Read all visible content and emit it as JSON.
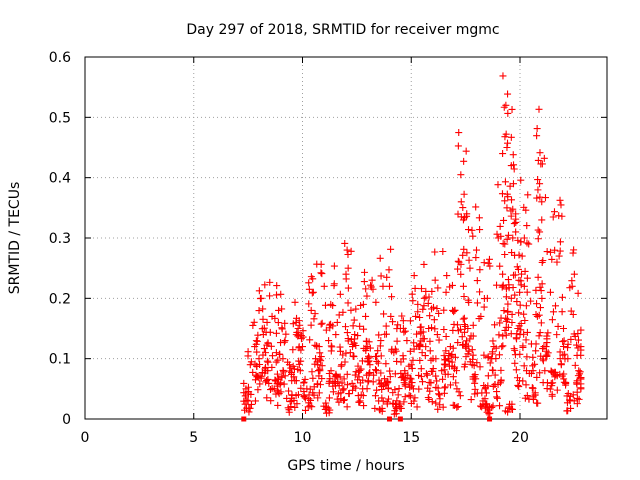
{
  "chart_data": {
    "type": "scatter",
    "title": "Day 297 of 2018, SRMTID for receiver mgmc",
    "xlabel": "GPS time / hours",
    "ylabel": "SRMTID / TECUs",
    "xlim": [
      0,
      24
    ],
    "ylim": [
      0,
      0.6
    ],
    "xticks": [
      "0",
      "5",
      "10",
      "15",
      "20"
    ],
    "yticks": [
      "0",
      "0.1",
      "0.2",
      "0.3",
      "0.4",
      "0.5",
      "0.6"
    ],
    "grid": true,
    "marker": "plus",
    "color": "#ff0000",
    "zero_markers_x": [
      7.3,
      14.0,
      14.5,
      18.6
    ],
    "series": [
      {
        "name": "SRMTID",
        "x": [
          7.4,
          7.6,
          7.8,
          8.0,
          8.2,
          8.4,
          8.6,
          8.8,
          9.0,
          9.2,
          9.4,
          9.6,
          9.8,
          10.0,
          10.2,
          10.4,
          10.6,
          10.8,
          11.0,
          11.2,
          11.4,
          11.6,
          11.8,
          12.0,
          12.2,
          12.4,
          12.6,
          12.8,
          13.0,
          13.2,
          13.4,
          13.6,
          13.8,
          14.0,
          14.2,
          14.4,
          14.6,
          14.8,
          15.0,
          15.2,
          15.4,
          15.6,
          15.8,
          16.0,
          16.2,
          16.4,
          16.6,
          16.8,
          17.0,
          17.2,
          17.4,
          17.6,
          17.8,
          18.0,
          18.2,
          18.4,
          18.6,
          18.8,
          19.0,
          19.2,
          19.4,
          19.6,
          19.8,
          20.0,
          20.2,
          20.4,
          20.6,
          20.8,
          21.0,
          21.2,
          21.4,
          21.6,
          21.8,
          22.0,
          22.2,
          22.4,
          22.6,
          22.8,
          7.5,
          7.9,
          8.3,
          8.7,
          9.1,
          9.5,
          9.9,
          10.3,
          10.7,
          11.1,
          11.5,
          11.9,
          12.3,
          12.7,
          13.1,
          13.5,
          13.9,
          14.3,
          14.7,
          15.1,
          15.5,
          15.9,
          16.3,
          16.7,
          17.1,
          17.5,
          17.9,
          18.3,
          18.7,
          19.1,
          19.5,
          19.9,
          20.3,
          20.7,
          21.1,
          21.5,
          21.9,
          22.3,
          22.7,
          8.1,
          8.9,
          9.7,
          10.5,
          11.3,
          12.1,
          12.9,
          13.7,
          14.5,
          15.3,
          16.1,
          16.9,
          17.7,
          18.5,
          19.3,
          20.1,
          20.9,
          21.7,
          22.5,
          19.35,
          19.4,
          19.6,
          19.7,
          19.8,
          20.9,
          21.0,
          17.3,
          17.4,
          19.2,
          20.2
        ],
        "y": [
          0.05,
          0.09,
          0.12,
          0.1,
          0.14,
          0.08,
          0.17,
          0.11,
          0.06,
          0.13,
          0.09,
          0.07,
          0.15,
          0.12,
          0.05,
          0.18,
          0.1,
          0.08,
          0.22,
          0.13,
          0.06,
          0.16,
          0.09,
          0.24,
          0.11,
          0.14,
          0.07,
          0.19,
          0.1,
          0.23,
          0.08,
          0.13,
          0.06,
          0.22,
          0.11,
          0.04,
          0.07,
          0.13,
          0.09,
          0.17,
          0.12,
          0.2,
          0.15,
          0.1,
          0.14,
          0.08,
          0.21,
          0.12,
          0.18,
          0.26,
          0.22,
          0.15,
          0.09,
          0.28,
          0.17,
          0.05,
          0.02,
          0.12,
          0.3,
          0.24,
          0.35,
          0.2,
          0.31,
          0.14,
          0.22,
          0.29,
          0.08,
          0.17,
          0.36,
          0.12,
          0.21,
          0.07,
          0.27,
          0.15,
          0.1,
          0.22,
          0.06,
          0.12,
          0.03,
          0.07,
          0.11,
          0.05,
          0.1,
          0.03,
          0.08,
          0.04,
          0.09,
          0.02,
          0.07,
          0.05,
          0.12,
          0.04,
          0.09,
          0.03,
          0.06,
          0.02,
          0.08,
          0.05,
          0.11,
          0.06,
          0.04,
          0.1,
          0.05,
          0.12,
          0.07,
          0.03,
          0.1,
          0.06,
          0.02,
          0.15,
          0.08,
          0.04,
          0.12,
          0.06,
          0.09,
          0.03,
          0.08,
          0.2,
          0.18,
          0.16,
          0.21,
          0.19,
          0.25,
          0.17,
          0.22,
          0.15,
          0.19,
          0.23,
          0.18,
          0.25,
          0.2,
          0.29,
          0.27,
          0.31,
          0.26,
          0.24,
          0.52,
          0.45,
          0.42,
          0.39,
          0.34,
          0.39,
          0.33,
          0.36,
          0.33,
          0.44,
          0.3
        ]
      }
    ]
  }
}
